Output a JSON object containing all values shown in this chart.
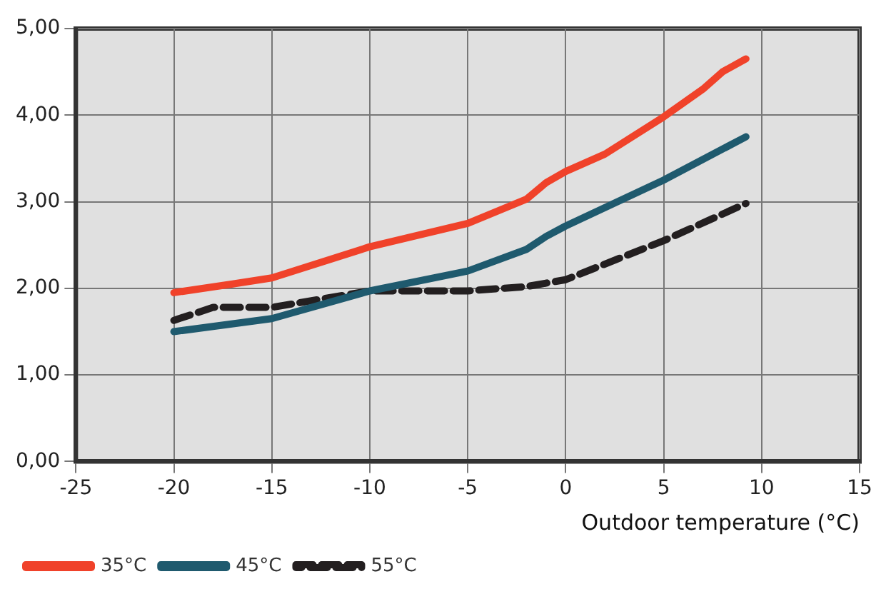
{
  "chart_data": {
    "type": "line",
    "xlabel": "Outdoor temperature (°C)",
    "xlim": [
      -25,
      15
    ],
    "xticks": [
      -25,
      -20,
      -15,
      -10,
      -5,
      0,
      5,
      10,
      15
    ],
    "ylim": [
      0,
      5
    ],
    "yticks": [
      {
        "value": 0,
        "label": "0,00"
      },
      {
        "value": 1,
        "label": "1,00"
      },
      {
        "value": 2,
        "label": "2,00"
      },
      {
        "value": 3,
        "label": "3,00"
      },
      {
        "value": 4,
        "label": "4,00"
      },
      {
        "value": 5,
        "label": "5,00"
      }
    ],
    "grid": true,
    "legend": "bottom left",
    "marker": "none",
    "series": [
      {
        "name": "35°C",
        "color": "#f0422a",
        "line_style": "solid",
        "x": [
          -20,
          -17,
          -15,
          -10,
          -5,
          -2,
          -1,
          0,
          2,
          5,
          7,
          8,
          9.2
        ],
        "values": [
          1.95,
          2.05,
          2.12,
          2.48,
          2.75,
          3.03,
          3.22,
          3.35,
          3.55,
          3.98,
          4.3,
          4.5,
          4.65
        ]
      },
      {
        "name": "45°C",
        "color": "#1f5a6e",
        "line_style": "solid",
        "x": [
          -20,
          -15,
          -10,
          -5,
          -2,
          -1,
          0,
          5,
          9.2
        ],
        "values": [
          1.5,
          1.65,
          1.97,
          2.2,
          2.45,
          2.6,
          2.72,
          3.25,
          3.75
        ]
      },
      {
        "name": "55°C",
        "color": "#231f20",
        "line_style": "dashed",
        "x": [
          -20,
          -18,
          -15,
          -10,
          -5,
          -2,
          0,
          5,
          9.2
        ],
        "values": [
          1.63,
          1.78,
          1.78,
          1.97,
          1.97,
          2.02,
          2.1,
          2.55,
          2.98
        ]
      }
    ]
  }
}
